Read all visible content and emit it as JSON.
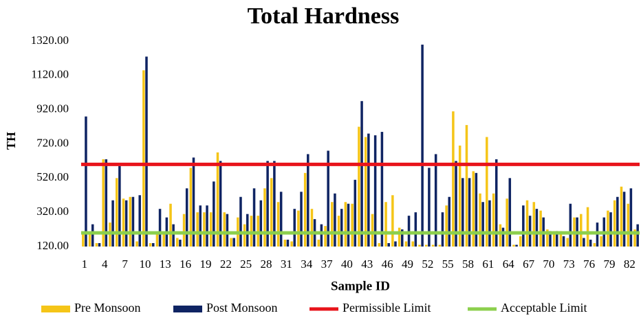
{
  "chart_data": {
    "type": "bar",
    "title": "Total Hardness",
    "x_label": "Sample ID",
    "y_label": "TH",
    "categories": [
      "1",
      null,
      null,
      "4",
      null,
      null,
      "7",
      null,
      null,
      "10",
      null,
      null,
      "13",
      null,
      null,
      "16",
      null,
      null,
      "19",
      null,
      null,
      "22",
      null,
      null,
      "25",
      null,
      null,
      "28",
      null,
      null,
      "31",
      null,
      null,
      "34",
      null,
      null,
      "37",
      null,
      null,
      "40",
      null,
      null,
      "43",
      null,
      null,
      "46",
      null,
      null,
      "49",
      null,
      null,
      "52",
      null,
      null,
      "55",
      null,
      null,
      "58",
      null,
      null,
      "61",
      null,
      null,
      "64",
      null,
      null,
      "67",
      null,
      null,
      "70",
      null,
      null,
      "73",
      null,
      null,
      "76",
      null,
      null,
      "79",
      null,
      null,
      "82",
      null
    ],
    "series": [
      {
        "name": "Pre Monsoon",
        "color": "#f5c518",
        "values": [
          200,
          200,
          140,
          630,
          260,
          520,
          400,
          410,
          150,
          1150,
          140,
          200,
          200,
          370,
          170,
          310,
          580,
          320,
          320,
          320,
          670,
          320,
          170,
          290,
          250,
          300,
          300,
          460,
          520,
          380,
          160,
          150,
          330,
          550,
          340,
          160,
          240,
          380,
          300,
          380,
          370,
          820,
          760,
          310,
          140,
          380,
          420,
          230,
          150,
          150,
          130,
          130,
          130,
          130,
          360,
          910,
          710,
          830,
          560,
          430,
          760,
          430,
          250,
          400,
          130,
          180,
          390,
          380,
          330,
          220,
          210,
          210,
          170,
          290,
          310,
          350,
          140,
          180,
          330,
          390,
          470,
          370,
          220
        ]
      },
      {
        "name": "Post Monsoon",
        "color": "#0f2463",
        "values": [
          880,
          250,
          140,
          630,
          390,
          590,
          390,
          410,
          420,
          1230,
          140,
          340,
          290,
          250,
          160,
          460,
          640,
          360,
          360,
          500,
          620,
          310,
          170,
          410,
          310,
          460,
          390,
          620,
          620,
          440,
          160,
          340,
          440,
          660,
          280,
          250,
          680,
          430,
          340,
          370,
          510,
          970,
          780,
          770,
          790,
          140,
          150,
          220,
          300,
          320,
          1300,
          580,
          660,
          320,
          410,
          620,
          520,
          520,
          550,
          380,
          390,
          630,
          230,
          520,
          130,
          360,
          300,
          340,
          290,
          210,
          210,
          180,
          370,
          290,
          170,
          160,
          260,
          290,
          320,
          410,
          440,
          460,
          250
        ]
      }
    ],
    "lines": [
      {
        "name": "Permissible Limit",
        "color": "#e8141b",
        "value": 600
      },
      {
        "name": "Acceptable Limit",
        "color": "#8ccf4d",
        "value": 200
      }
    ],
    "ylim": [
      120,
      1320
    ],
    "yticks": [
      {
        "value": 120,
        "label": "120.00"
      },
      {
        "value": 320,
        "label": "320.00"
      },
      {
        "value": 520,
        "label": "520.00"
      },
      {
        "value": 720,
        "label": "720.00"
      },
      {
        "value": 920,
        "label": "920.00"
      },
      {
        "value": 1120,
        "label": "1120.00"
      },
      {
        "value": 1320,
        "label": "1320.00"
      }
    ],
    "grid": false,
    "legend": "bottom"
  }
}
